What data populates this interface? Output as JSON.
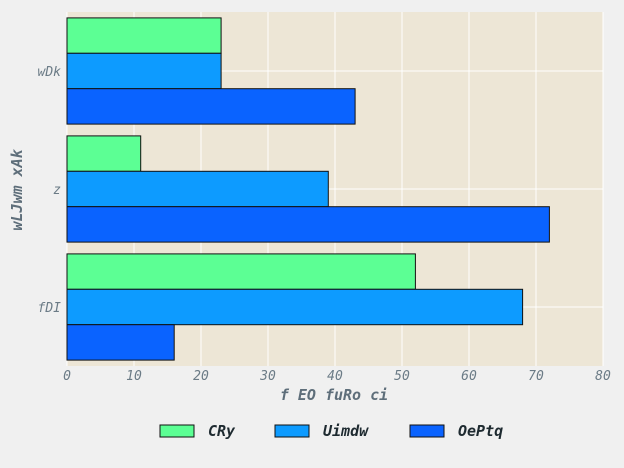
{
  "chart_data": {
    "type": "bar",
    "orientation": "horizontal",
    "title": "",
    "xlabel": "f EO fuRo ci",
    "ylabel": "wLJwm xAk",
    "categories": [
      "fDI",
      "z",
      "wDk"
    ],
    "xlim": [
      0,
      80
    ],
    "xticks": [
      0,
      10,
      20,
      30,
      40,
      50,
      60,
      70,
      80
    ],
    "grid": true,
    "legend_position": "bottom",
    "series": [
      {
        "name": "CRy",
        "color": "#5cff94",
        "values": [
          52,
          11,
          23
        ]
      },
      {
        "name": "Uimdw",
        "color": "#0d9bff",
        "values": [
          68,
          39,
          23
        ]
      },
      {
        "name": "OePtq",
        "color": "#0a63ff",
        "values": [
          16,
          72,
          43
        ]
      }
    ]
  },
  "colors": {
    "background": "#f0f0f0",
    "plot_background": "#ede6d6",
    "grid": "#ffffff",
    "bar_edge": "#111111"
  }
}
